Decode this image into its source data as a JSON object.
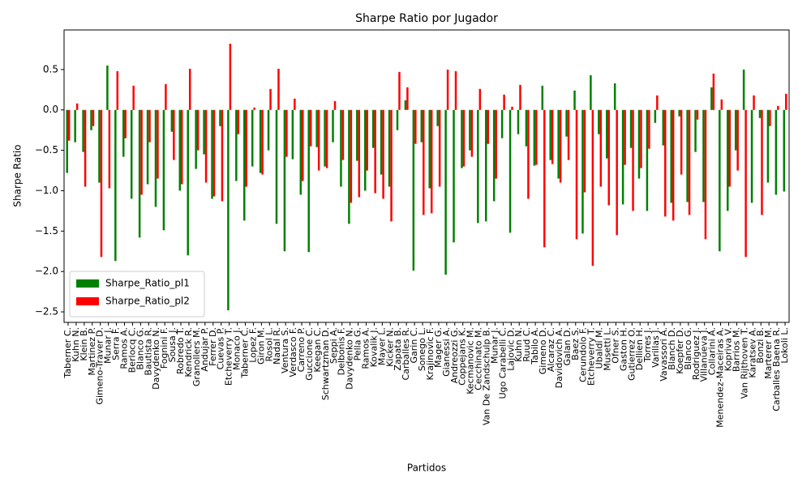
{
  "chart_data": {
    "type": "bar",
    "title": "Sharpe Ratio por Jugador",
    "x_label": "Partidos",
    "y_label": "Sharpe Ratio",
    "categories": [
      "Taberner C.",
      "Kuhn N.",
      "Klein B.",
      "Martinez P.",
      "Gimeno-Traver D.",
      "Munar J.",
      "Serra F.",
      "Ramos A.",
      "Berlocq C.",
      "Blanco G.",
      "Bautista R.",
      "Davydenko N.",
      "Fognini F.",
      "Sousa J.",
      "Robredo T.",
      "Kendrick R.",
      "Granollers M.",
      "Andujar P.",
      "Ferrer D.",
      "Cuevas P.",
      "Etcheverry T.",
      "Monaco J.",
      "Taberner C.",
      "Lopez F.",
      "Giron M.",
      "Rosol L.",
      "Nadal R.",
      "Ventura S.",
      "Verdasco F.",
      "Carreno P.",
      "Guccione C.",
      "Keegan C.",
      "Schwartzman D.",
      "Seppi A.",
      "Delbonis F.",
      "Davydenko N.",
      "Pella G.",
      "Ramos A.",
      "Kovalik J.",
      "Mayer L.",
      "Kicker N.",
      "Zapata B.",
      "Carballes R.",
      "Garin C.",
      "Sonego L.",
      "Krajinovic F.",
      "Mager G.",
      "Gianessi A.",
      "Andreozzi G.",
      "Coppejans K.",
      "Kecmanovic M.",
      "Cecchinato M.",
      "Van De Zandschulp B.",
      "Munar J.",
      "Ugo Carabelli C.",
      "Lajovic D.",
      "Kuhn N.",
      "Ruud C.",
      "Tabilo A.",
      "Gimeno D.",
      "Alcaraz C.",
      "Davidovich A.",
      "Galan D.",
      "Baez S.",
      "Cerundolo F.",
      "Etcheverry T.",
      "Ubaldi M.",
      "Musetti L.",
      "Ofner S.",
      "Gaston H.",
      "Gutierrez O.",
      "Dellien H.",
      "Torres J.",
      "Varillas J.",
      "Vavassori A.",
      "Blanch D.",
      "Koepfer D.",
      "Blanco G.",
      "Rodriguez J.",
      "Villanueva J.",
      "Collarini A.",
      "Menendez-Maceiras A.",
      "Kopriva V.",
      "Barrios M.",
      "Van Rijthoven T.",
      "Karatsev A.",
      "Bonzi B.",
      "Marterer M.",
      "Carballes Baena R.",
      "Lokoli L."
    ],
    "series": [
      {
        "name": "Sharpe_Ratio_pl1",
        "color": "#008000",
        "values": [
          -0.78,
          -0.4,
          -0.52,
          -0.25,
          -0.9,
          0.55,
          -1.87,
          -0.58,
          -1.1,
          -1.58,
          -0.92,
          -1.2,
          -1.49,
          -0.27,
          -1.0,
          -1.8,
          -0.73,
          -0.55,
          -1.1,
          -0.2,
          -2.48,
          -0.88,
          -1.37,
          -0.7,
          -0.78,
          -0.5,
          -1.41,
          -1.75,
          -0.61,
          -1.05,
          -1.76,
          -0.46,
          -0.7,
          -0.4,
          -0.95,
          -1.41,
          -0.63,
          -1.0,
          -0.47,
          -0.8,
          -0.95,
          -0.25,
          0.12,
          -1.99,
          -0.4,
          -0.97,
          -0.2,
          -2.04,
          -1.64,
          -0.72,
          -0.5,
          -1.4,
          -1.38,
          -1.13,
          -0.35,
          -1.52,
          -0.3,
          -0.45,
          -0.69,
          0.3,
          -0.62,
          -0.85,
          -0.33,
          0.24,
          -1.53,
          0.43,
          -0.3,
          -0.6,
          0.33,
          -1.17,
          -0.47,
          -0.85,
          -1.25,
          -0.16,
          -0.44,
          -1.15,
          -0.08,
          -1.14,
          -0.52,
          -1.14,
          0.28,
          -1.75,
          -1.25,
          -0.5,
          0.5,
          -1.15,
          -0.1,
          -0.9,
          -1.05,
          -1.01
        ]
      },
      {
        "name": "Sharpe_Ratio_pl2",
        "color": "#ff0000",
        "values": [
          -0.38,
          0.08,
          -0.95,
          -0.2,
          -1.82,
          -0.97,
          0.48,
          -0.35,
          0.3,
          -1.05,
          -0.4,
          -0.85,
          0.32,
          -0.62,
          -0.92,
          0.51,
          -0.5,
          -0.9,
          -1.07,
          -1.13,
          0.82,
          -0.3,
          -0.95,
          0.03,
          -0.8,
          0.26,
          0.51,
          -0.58,
          0.14,
          -0.88,
          -0.45,
          -0.75,
          -0.72,
          0.11,
          -0.62,
          -1.15,
          -1.08,
          -0.75,
          -1.03,
          -1.1,
          -1.38,
          0.47,
          0.28,
          -0.42,
          -1.3,
          -1.28,
          -0.95,
          0.5,
          0.48,
          -0.7,
          -0.58,
          0.26,
          -0.42,
          -0.85,
          0.19,
          0.04,
          0.31,
          -1.1,
          -0.68,
          -1.7,
          -0.67,
          -0.9,
          -0.62,
          -1.6,
          -1.02,
          -1.93,
          -0.95,
          -1.18,
          -1.55,
          -0.68,
          -1.25,
          -0.72,
          -0.48,
          0.18,
          -1.32,
          -1.37,
          -0.8,
          -1.3,
          -0.12,
          -1.6,
          0.45,
          0.13,
          -0.95,
          -0.75,
          -1.82,
          0.18,
          -1.3,
          -0.2,
          0.05,
          0.2
        ]
      }
    ],
    "ylim": [
      -2.63,
      0.99
    ],
    "yticks": [
      {
        "value": -2.5,
        "label": "−2.5"
      },
      {
        "value": -2.0,
        "label": "−2.0"
      },
      {
        "value": -1.5,
        "label": "−1.5"
      },
      {
        "value": -1.0,
        "label": "−1.0"
      },
      {
        "value": -0.5,
        "label": "−0.5"
      },
      {
        "value": 0.0,
        "label": "0.0"
      },
      {
        "value": 0.5,
        "label": "0.5"
      }
    ],
    "legend": "lower left"
  }
}
